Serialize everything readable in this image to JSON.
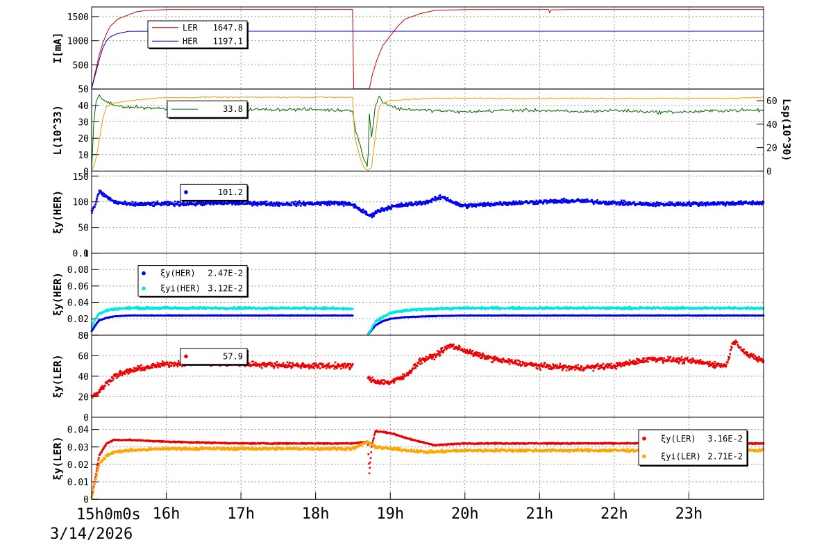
{
  "chart_data": {
    "type": "line",
    "date": "3/14/2026",
    "time_axis": {
      "start_label": "15h0m0s",
      "hour_labels": [
        "16h",
        "17h",
        "18h",
        "19h",
        "20h",
        "21h",
        "22h",
        "23h"
      ]
    },
    "panels": [
      {
        "id": "current",
        "ylabel": "I[mA]",
        "ylim": [
          0,
          1700
        ],
        "yticks": [
          500,
          1000,
          1500
        ],
        "legend": [
          {
            "name": "LER",
            "value": "1647.8",
            "color": "#cc0000"
          },
          {
            "name": "HER",
            "value": "1197.1",
            "color": "#0000aa"
          }
        ],
        "series": [
          {
            "name": "LER",
            "color": "#cc0000",
            "style": "line",
            "x": [
              15.0,
              15.05,
              15.1,
              15.15,
              15.2,
              15.25,
              15.35,
              15.5,
              15.6,
              15.75,
              16.0,
              16.5,
              17.0,
              17.5,
              18.0,
              18.3,
              18.5,
              18.51,
              18.52,
              18.68,
              18.72,
              18.76,
              18.82,
              18.9,
              19.0,
              19.1,
              19.2,
              19.4,
              19.6,
              20.0,
              20.5,
              21.0,
              21.12,
              21.13,
              21.15,
              21.5,
              22.0,
              22.5,
              23.0,
              23.5,
              24.0
            ],
            "y": [
              10,
              350,
              700,
              950,
              1150,
              1300,
              1450,
              1540,
              1600,
              1630,
              1645,
              1648,
              1648,
              1648,
              1648,
              1648,
              1648,
              5,
              5,
              5,
              5,
              300,
              600,
              900,
              1100,
              1300,
              1450,
              1560,
              1630,
              1645,
              1648,
              1648,
              1648,
              1560,
              1640,
              1648,
              1648,
              1648,
              1648,
              1648,
              1648
            ]
          },
          {
            "name": "HER",
            "color": "#0000aa",
            "style": "line",
            "x": [
              15.0,
              15.05,
              15.1,
              15.15,
              15.2,
              15.25,
              15.35,
              15.45,
              15.5,
              16.0,
              17.0,
              18.0,
              18.5,
              18.6,
              19.0,
              20.0,
              21.0,
              22.0,
              23.0,
              24.0
            ],
            "y": [
              10,
              300,
              600,
              850,
              1000,
              1080,
              1150,
              1180,
              1195,
              1197,
              1197,
              1197,
              1197,
              1197,
              1197,
              1197,
              1197,
              1197,
              1197,
              1197
            ]
          }
        ]
      },
      {
        "id": "luminosity",
        "ylabel": "L(10^33)",
        "ylim": [
          0,
          50
        ],
        "yticks": [
          0,
          10,
          20,
          30,
          40,
          50
        ],
        "y2label": "Lsp(10^30)",
        "y2lim": [
          0,
          70
        ],
        "y2ticks": [
          0,
          20,
          40,
          60
        ],
        "legend": [
          {
            "name": "",
            "value": "33.8",
            "color": "#006600"
          }
        ],
        "series": [
          {
            "name": "L",
            "color": "#006600",
            "style": "line",
            "noise": 1.5,
            "x": [
              15.0,
              15.03,
              15.06,
              15.1,
              15.15,
              15.2,
              15.3,
              15.5,
              15.8,
              16.0,
              16.5,
              17.0,
              17.5,
              18.0,
              18.3,
              18.5,
              18.52,
              18.6,
              18.65,
              18.7,
              18.72,
              18.75,
              18.8,
              18.85,
              18.9,
              19.0,
              19.1,
              19.5,
              20.0,
              20.5,
              21.0,
              21.5,
              22.0,
              22.5,
              23.0,
              23.5,
              24.0
            ],
            "y": [
              0,
              30,
              42,
              46,
              44,
              42,
              40,
              39,
              38.5,
              38,
              38,
              37.5,
              37.5,
              37.5,
              37,
              37.2,
              28,
              15,
              6,
              3,
              35,
              20,
              40,
              46,
              42,
              40,
              38,
              37,
              36,
              37,
              37,
              36,
              37,
              36,
              36,
              37,
              37
            ]
          },
          {
            "name": "Lsp",
            "color": "#e6a000",
            "style": "line",
            "axis": "right",
            "noise": 0.8,
            "x": [
              15.0,
              15.05,
              15.1,
              15.15,
              15.2,
              15.3,
              15.5,
              15.8,
              16.0,
              16.5,
              17.0,
              17.5,
              18.0,
              18.3,
              18.5,
              18.52,
              18.6,
              18.65,
              18.7,
              18.75,
              18.8,
              18.85,
              18.9,
              19.0,
              19.2,
              19.5,
              20.0,
              20.5,
              21.0,
              21.5,
              22.0,
              22.5,
              23.0,
              23.5,
              24.0
            ],
            "y": [
              0,
              8,
              25,
              45,
              55,
              58,
              60,
              62,
              62.5,
              63,
              63,
              63,
              63,
              63,
              63,
              30,
              10,
              3,
              0,
              3,
              30,
              55,
              58,
              60,
              61,
              62,
              62,
              62,
              62,
              62,
              62,
              62,
              62,
              62,
              63
            ]
          }
        ]
      },
      {
        "id": "beam-beam-her",
        "ylabel": "ξy(HER)",
        "ylim": [
          0,
          160
        ],
        "yticks": [
          0,
          50,
          100,
          150
        ],
        "legend": [
          {
            "name": "",
            "value": "101.2",
            "color": "#0000ee"
          }
        ],
        "series": [
          {
            "name": "HER",
            "color": "#0000ee",
            "style": "scatter",
            "noise": 6,
            "x": [
              15.0,
              15.05,
              15.1,
              15.2,
              15.3,
              15.5,
              16.0,
              16.5,
              17.0,
              17.5,
              18.0,
              18.3,
              18.5,
              18.7,
              18.75,
              18.8,
              19.0,
              19.5,
              19.7,
              19.9,
              20.0,
              20.5,
              21.0,
              21.5,
              22.0,
              22.5,
              23.0,
              23.5,
              24.0
            ],
            "y": [
              80,
              95,
              120,
              110,
              100,
              95,
              96,
              97,
              98,
              96,
              97,
              98,
              94,
              75,
              72,
              80,
              90,
              100,
              110,
              95,
              92,
              97,
              100,
              102,
              98,
              95,
              96,
              97,
              98
            ]
          }
        ]
      },
      {
        "id": "xi-her",
        "ylabel": "ξy(HER)",
        "ylim": [
          0,
          0.1
        ],
        "yticks": [
          0,
          0.02,
          0.04,
          0.06,
          0.08,
          0.1
        ],
        "legend": [
          {
            "name": "ξy(HER)",
            "value": "2.47E-2",
            "color": "#0000ee"
          },
          {
            "name": "ξyi(HER)",
            "value": "3.12E-2",
            "color": "#00e6e6"
          }
        ],
        "series": [
          {
            "name": "ξy(HER)",
            "color": "#0000ee",
            "style": "scatter",
            "noise": 0.0005,
            "x": [
              15.0,
              15.05,
              15.1,
              15.2,
              15.3,
              15.5,
              16.0,
              17.0,
              18.0,
              18.5,
              18.52,
              18.7,
              18.75,
              18.8,
              18.9,
              19.0,
              19.2,
              19.5,
              20.0,
              21.0,
              22.0,
              23.0,
              24.0
            ],
            "y": [
              0.005,
              0.012,
              0.018,
              0.021,
              0.023,
              0.024,
              0.024,
              0.024,
              0.024,
              0.024,
              null,
              0.001,
              0.006,
              0.012,
              0.017,
              0.02,
              0.022,
              0.023,
              0.024,
              0.024,
              0.024,
              0.024,
              0.024
            ]
          },
          {
            "name": "ξyi(HER)",
            "color": "#00e6e6",
            "style": "scatter",
            "noise": 0.002,
            "x": [
              15.0,
              15.05,
              15.1,
              15.2,
              15.3,
              15.5,
              16.0,
              17.0,
              18.0,
              18.5,
              18.52,
              18.7,
              18.75,
              18.8,
              18.9,
              19.0,
              19.2,
              19.5,
              20.0,
              21.0,
              22.0,
              23.0,
              24.0
            ],
            "y": [
              0.01,
              0.02,
              0.026,
              0.03,
              0.032,
              0.033,
              0.033,
              0.033,
              0.033,
              0.032,
              null,
              0.001,
              0.008,
              0.016,
              0.022,
              0.027,
              0.03,
              0.032,
              0.033,
              0.033,
              0.033,
              0.033,
              0.033
            ]
          }
        ]
      },
      {
        "id": "beam-beam-ler",
        "ylabel": "ξy(LER)",
        "ylim": [
          0,
          80
        ],
        "yticks": [
          0,
          20,
          40,
          60,
          80
        ],
        "legend": [
          {
            "name": "",
            "value": "57.9",
            "color": "#ee0000"
          }
        ],
        "series": [
          {
            "name": "LER",
            "color": "#ee0000",
            "style": "scatter",
            "noise": 4,
            "x": [
              15.0,
              15.1,
              15.2,
              15.3,
              15.5,
              15.7,
              16.0,
              16.5,
              17.0,
              17.5,
              18.0,
              18.5,
              18.52,
              18.7,
              18.8,
              19.0,
              19.2,
              19.4,
              19.6,
              19.8,
              20.0,
              20.2,
              20.5,
              21.0,
              21.5,
              22.0,
              22.5,
              23.0,
              23.5,
              23.6,
              23.8,
              24.0
            ],
            "y": [
              20,
              25,
              33,
              40,
              45,
              48,
              52,
              53,
              52,
              51,
              50,
              50,
              null,
              38,
              35,
              34,
              40,
              55,
              60,
              70,
              65,
              60,
              55,
              50,
              48,
              50,
              57,
              55,
              50,
              75,
              60,
              55
            ]
          }
        ]
      },
      {
        "id": "xi-ler",
        "ylabel": "ξy(LER)",
        "ylim": [
          0,
          0.047
        ],
        "yticks": [
          0,
          0.01,
          0.02,
          0.03,
          0.04
        ],
        "legend": [
          {
            "name": "ξy(LER)",
            "value": "3.16E-2",
            "color": "#ee0000"
          },
          {
            "name": "ξyi(LER)",
            "value": "2.71E-2",
            "color": "#ffa500"
          }
        ],
        "series": [
          {
            "name": "ξy(LER)",
            "color": "#ee0000",
            "style": "scatter",
            "noise": 0.0005,
            "x": [
              15.0,
              15.05,
              15.1,
              15.2,
              15.3,
              15.5,
              16.0,
              17.0,
              18.0,
              18.5,
              18.7,
              18.72,
              18.75,
              18.8,
              19.0,
              19.3,
              19.6,
              20.0,
              21.0,
              22.0,
              23.0,
              24.0
            ],
            "y": [
              0.001,
              0.012,
              0.025,
              0.032,
              0.034,
              0.034,
              0.033,
              0.032,
              0.032,
              0.032,
              0.033,
              0.015,
              0.03,
              0.039,
              0.038,
              0.034,
              0.031,
              0.032,
              0.032,
              0.032,
              0.032,
              0.032
            ]
          },
          {
            "name": "ξyi(LER)",
            "color": "#ffa500",
            "style": "scatter",
            "noise": 0.0012,
            "x": [
              15.0,
              15.05,
              15.1,
              15.2,
              15.3,
              15.5,
              16.0,
              17.0,
              18.0,
              18.5,
              18.7,
              18.75,
              18.8,
              19.0,
              19.5,
              20.0,
              21.0,
              22.0,
              23.0,
              24.0
            ],
            "y": [
              0.001,
              0.01,
              0.02,
              0.025,
              0.027,
              0.028,
              0.029,
              0.029,
              0.029,
              0.029,
              0.033,
              0.031,
              0.03,
              0.029,
              0.027,
              0.028,
              0.028,
              0.028,
              0.028,
              0.028
            ]
          }
        ]
      }
    ]
  }
}
